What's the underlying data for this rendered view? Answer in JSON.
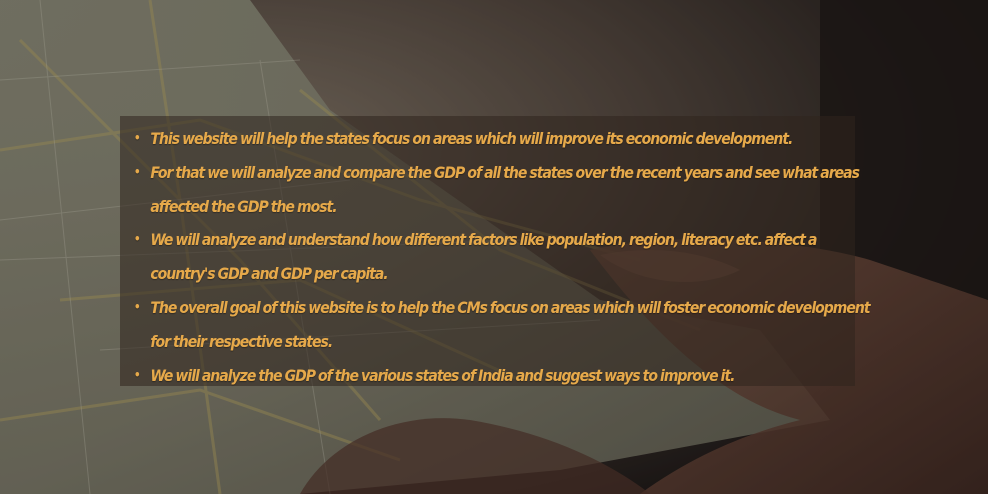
{
  "background": {
    "description_icon": "map-photo-background"
  },
  "colors": {
    "text": "#e6a94a",
    "panel": "#30241e"
  },
  "bullets": [
    {
      "marker": "•",
      "text": "This website will help the states focus on areas which will improve its economic development."
    },
    {
      "marker": "•",
      "text": "For that we will analyze and compare the GDP of all the states over the recent years and see what areas affected the GDP the most."
    },
    {
      "marker": "•",
      "text": "We will analyze and understand how different factors like population, region, literacy etc. affect a country's GDP and GDP per capita."
    },
    {
      "marker": "•",
      "text": "The overall goal of this website is to help the CMs focus on areas which will foster economic development for their respective states."
    },
    {
      "marker": "•",
      "text": "We will analyze the GDP of the various states of India and suggest ways to improve it."
    }
  ]
}
